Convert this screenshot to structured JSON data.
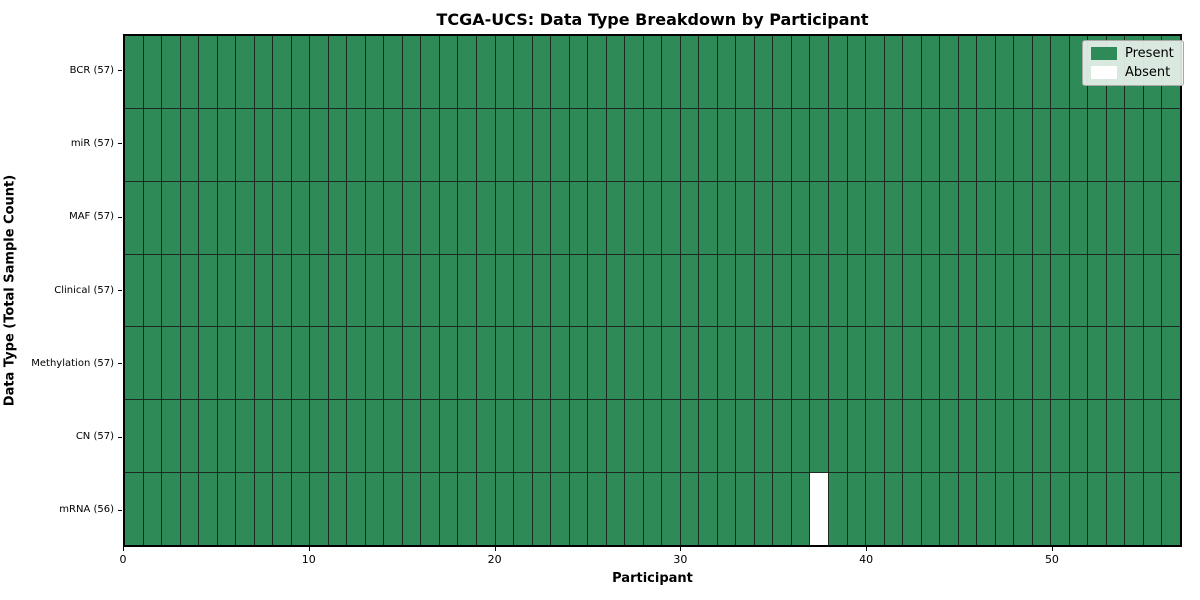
{
  "chart_data": {
    "type": "heatmap",
    "title": "TCGA-UCS: Data Type Breakdown by Participant",
    "xlabel": "Participant",
    "ylabel": "Data Type (Total Sample Count)",
    "n_participants": 57,
    "x_ticks": [
      0,
      10,
      20,
      30,
      40,
      50
    ],
    "rows": [
      {
        "label": "BCR (57)",
        "data_type": "BCR",
        "present_count": 57,
        "absent_participants": []
      },
      {
        "label": "miR (57)",
        "data_type": "miR",
        "present_count": 57,
        "absent_participants": []
      },
      {
        "label": "MAF (57)",
        "data_type": "MAF",
        "present_count": 57,
        "absent_participants": []
      },
      {
        "label": "Clinical (57)",
        "data_type": "Clinical",
        "present_count": 57,
        "absent_participants": []
      },
      {
        "label": "Methylation (57)",
        "data_type": "Methylation",
        "present_count": 57,
        "absent_participants": []
      },
      {
        "label": "CN (57)",
        "data_type": "CN",
        "present_count": 57,
        "absent_participants": []
      },
      {
        "label": "mRNA (56)",
        "data_type": "mRNA",
        "present_count": 56,
        "absent_participants": [
          37
        ]
      }
    ],
    "legend": [
      {
        "label": "Present",
        "color": "#2e8b57"
      },
      {
        "label": "Absent",
        "color": "#ffffff"
      }
    ],
    "colors": {
      "present": "#2e8b57",
      "absent": "#ffffff",
      "cell_edge": "#1b2b20",
      "spine": "#000000"
    },
    "legend_position": "upper right",
    "grid": "cell-edges"
  }
}
